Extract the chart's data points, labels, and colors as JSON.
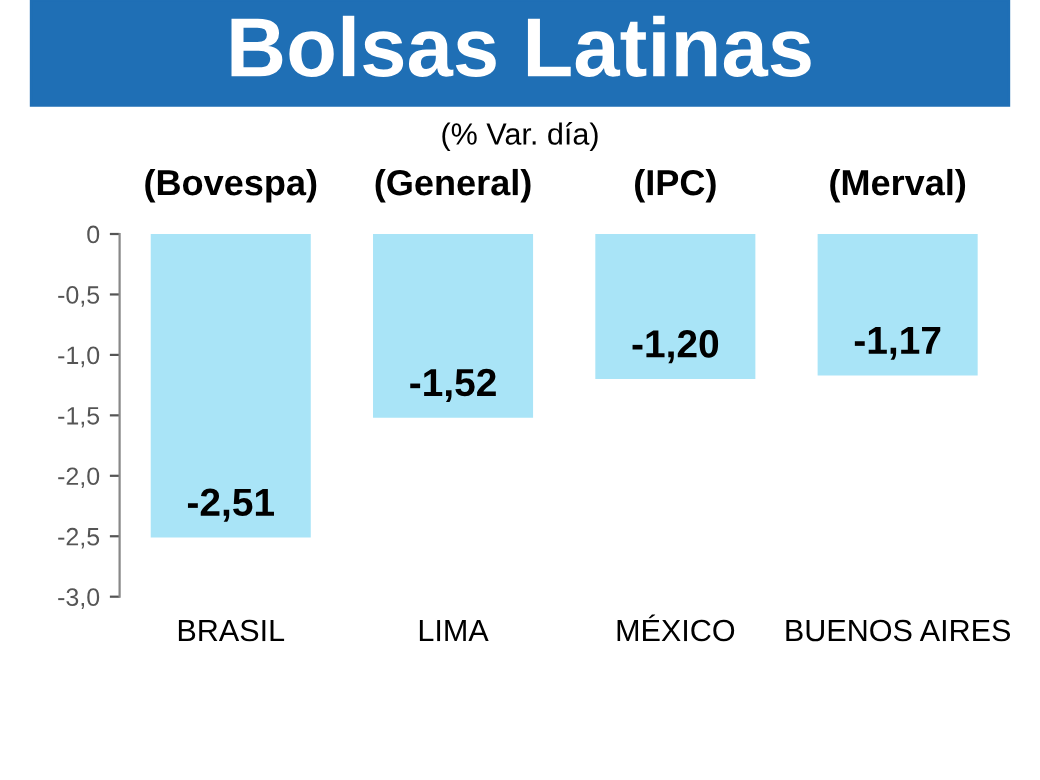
{
  "chart_data": {
    "type": "bar",
    "title": "Bolsas Latinas",
    "subtitle": "(% Var. día)",
    "categories": [
      "BRASIL",
      "LIMA",
      "MÉXICO",
      "BUENOS AIRES"
    ],
    "values": [
      -2.51,
      -1.52,
      -1.2,
      -1.17
    ],
    "value_labels": [
      "-2,51",
      "-1,52",
      "-1,20",
      "-1,17"
    ],
    "color": "#a9e4f7",
    "ylim": [
      -3.0,
      0
    ],
    "yticks": [
      {
        "value": -3.0,
        "label": "-3,0"
      },
      {
        "value": -2.5,
        "label": "-2,5"
      },
      {
        "value": -2.0,
        "label": "-2,0"
      },
      {
        "value": -1.5,
        "label": "-1,5"
      },
      {
        "value": -1.0,
        "label": "-1,0"
      },
      {
        "value": -0.5,
        "label": "-0,5"
      },
      0
    ],
    "grid": false,
    "legend": false,
    "annotations": [
      "(Bovespa)",
      "(General)",
      "(IPC)",
      "(Merval)"
    ]
  }
}
